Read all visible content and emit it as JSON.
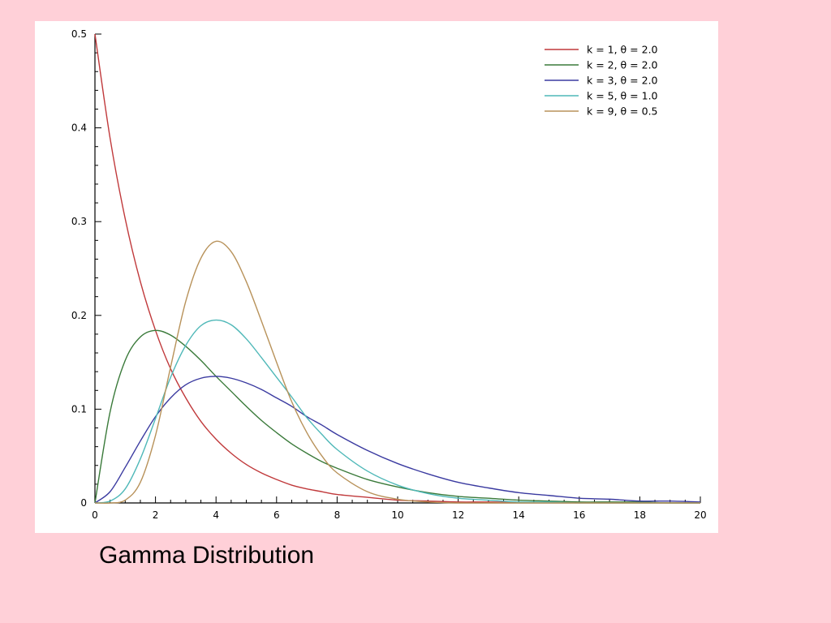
{
  "slide": {
    "caption": "Gamma Distribution",
    "background": "#ffd0d8"
  },
  "chart_data": {
    "type": "line",
    "title": "",
    "xlabel": "",
    "ylabel": "",
    "xlim": [
      0,
      20
    ],
    "ylim": [
      0,
      0.5
    ],
    "x_ticks": [
      0,
      2,
      4,
      6,
      8,
      10,
      12,
      14,
      16,
      18,
      20
    ],
    "x_tick_labels": [
      "0",
      "2",
      "4",
      "6",
      "8",
      "10",
      "12",
      "14",
      "16",
      "18",
      "20"
    ],
    "y_ticks": [
      0,
      0.1,
      0.2,
      0.3,
      0.4,
      0.5
    ],
    "y_tick_labels": [
      "0",
      "0.1",
      "0.2",
      "0.3",
      "0.4",
      "0.5"
    ],
    "grid": false,
    "legend_position": "top-right",
    "x": [
      0,
      0.5,
      1,
      1.5,
      2,
      2.5,
      3,
      3.5,
      4,
      4.5,
      5,
      5.5,
      6,
      6.5,
      7,
      7.5,
      8,
      9,
      10,
      11,
      12,
      13,
      14,
      15,
      16,
      17,
      18,
      19,
      20
    ],
    "series": [
      {
        "name": "k = 1, θ = 2.0",
        "color": "#c0393b",
        "values": [
          0.5,
          0.389,
          0.303,
          0.236,
          0.184,
          0.143,
          0.112,
          0.087,
          0.068,
          0.053,
          0.041,
          0.032,
          0.025,
          0.019,
          0.015,
          0.012,
          0.009,
          0.006,
          0.003,
          0.002,
          0.001,
          0.001,
          0.0005,
          0.0003,
          0.0002,
          0.0001,
          0.0001,
          0.0,
          0.0
        ]
      },
      {
        "name": "k = 2, θ = 2.0",
        "color": "#3a7a3a",
        "values": [
          0.0,
          0.097,
          0.152,
          0.177,
          0.184,
          0.179,
          0.167,
          0.152,
          0.135,
          0.119,
          0.103,
          0.088,
          0.075,
          0.063,
          0.053,
          0.044,
          0.037,
          0.025,
          0.017,
          0.011,
          0.007,
          0.005,
          0.003,
          0.002,
          0.001,
          0.001,
          0.001,
          0.0,
          0.0
        ]
      },
      {
        "name": "k = 3, θ = 2.0",
        "color": "#3a3aa0",
        "values": [
          0.0,
          0.012,
          0.038,
          0.066,
          0.092,
          0.112,
          0.126,
          0.133,
          0.135,
          0.133,
          0.128,
          0.121,
          0.112,
          0.103,
          0.092,
          0.083,
          0.073,
          0.056,
          0.042,
          0.031,
          0.022,
          0.016,
          0.011,
          0.008,
          0.005,
          0.004,
          0.002,
          0.002,
          0.001
        ]
      },
      {
        "name": "k = 5, θ = 1.0",
        "color": "#4fb8b8",
        "values": [
          0.0,
          0.002,
          0.015,
          0.047,
          0.09,
          0.134,
          0.168,
          0.189,
          0.195,
          0.19,
          0.175,
          0.155,
          0.134,
          0.113,
          0.091,
          0.073,
          0.057,
          0.034,
          0.019,
          0.01,
          0.005,
          0.003,
          0.001,
          0.001,
          0.0,
          0.0,
          0.0,
          0.0,
          0.0
        ]
      },
      {
        "name": "k = 9, θ = 0.5",
        "color": "#b8925a",
        "values": [
          0.0,
          0.0,
          0.003,
          0.022,
          0.072,
          0.145,
          0.215,
          0.261,
          0.279,
          0.268,
          0.236,
          0.194,
          0.15,
          0.108,
          0.075,
          0.05,
          0.032,
          0.012,
          0.004,
          0.001,
          0.0,
          0.0,
          0.0,
          0.0,
          0.0,
          0.0,
          0.0,
          0.0,
          0.0
        ]
      }
    ]
  }
}
